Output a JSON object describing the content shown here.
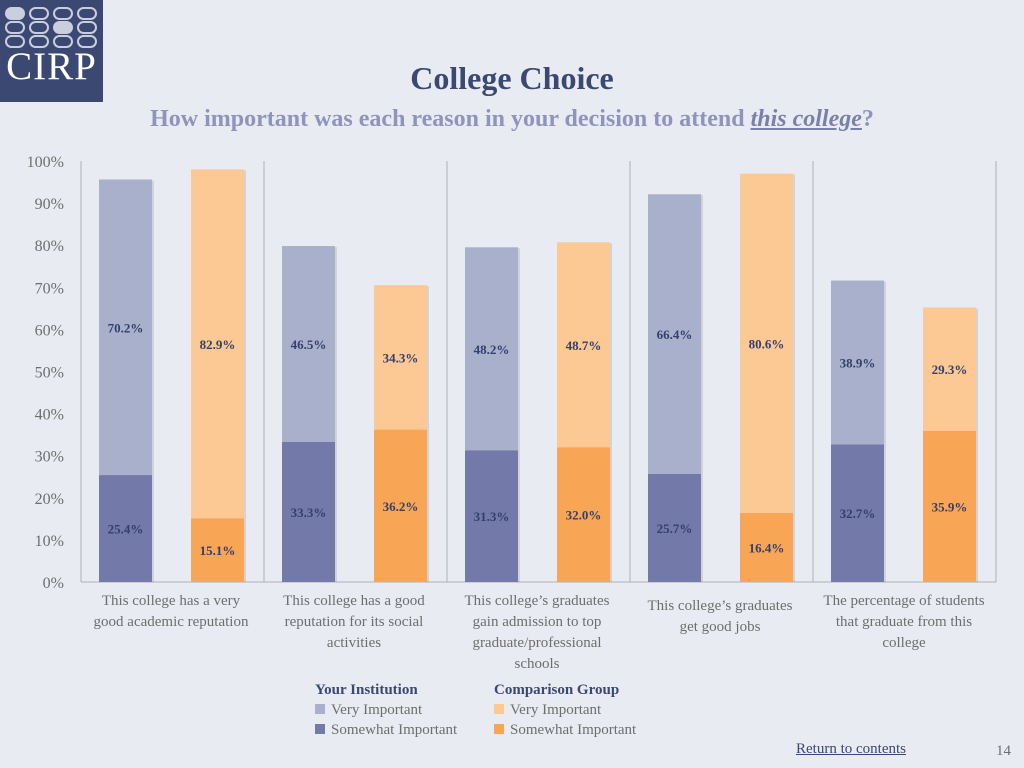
{
  "logo": {
    "text": "CIRP"
  },
  "header": {
    "title": "College Choice",
    "subtitle_prefix": "How important was each reason in your decision to attend ",
    "subtitle_emphasis": "this college",
    "subtitle_suffix": "?"
  },
  "colors": {
    "inst_very": "#a8b0cb",
    "inst_somewhat": "#7379a8",
    "comp_very": "#fcc894",
    "comp_somewhat": "#f8a555",
    "label": "#333f6e"
  },
  "chart_data": {
    "type": "bar",
    "stacked": true,
    "ylim": [
      0,
      100
    ],
    "yticks": [
      "0%",
      "10%",
      "20%",
      "30%",
      "40%",
      "50%",
      "60%",
      "70%",
      "80%",
      "90%",
      "100%"
    ],
    "categories": [
      "This college has a very good academic reputation",
      "This college has a good reputation for its social activities",
      "This college’s graduates gain admission to top graduate/professional schools",
      "This college’s graduates get good jobs",
      "The percentage of students that graduate from this college"
    ],
    "groups": [
      "Your Institution",
      "Comparison Group"
    ],
    "series": [
      {
        "name": "Your Institution — Somewhat Important",
        "group": "Your Institution",
        "level": "Somewhat Important",
        "values": [
          25.4,
          33.3,
          31.3,
          25.7,
          32.7
        ]
      },
      {
        "name": "Your Institution — Very Important",
        "group": "Your Institution",
        "level": "Very Important",
        "values": [
          70.2,
          46.5,
          48.2,
          66.4,
          38.9
        ]
      },
      {
        "name": "Comparison Group — Somewhat Important",
        "group": "Comparison Group",
        "level": "Somewhat Important",
        "values": [
          15.1,
          36.2,
          32.0,
          16.4,
          35.9
        ]
      },
      {
        "name": "Comparison Group — Very Important",
        "group": "Comparison Group",
        "level": "Very Important",
        "values": [
          82.9,
          34.3,
          48.7,
          80.6,
          29.3
        ]
      }
    ],
    "value_labels": {
      "Your Institution": {
        "Somewhat Important": [
          "25.4%",
          "33.3%",
          "31.3%",
          "25.7%",
          "32.7%"
        ],
        "Very Important": [
          "70.2%",
          "46.5%",
          "48.2%",
          "66.4%",
          "38.9%"
        ]
      },
      "Comparison Group": {
        "Somewhat Important": [
          "15.1%",
          "36.2%",
          "32.0%",
          "16.4%",
          "35.9%"
        ],
        "Very Important": [
          "82.9%",
          "34.3%",
          "48.7%",
          "80.6%",
          "29.3%"
        ]
      }
    },
    "legend": {
      "position": "bottom",
      "groups": [
        {
          "title": "Your Institution",
          "items": [
            {
              "label": "Very Important",
              "color": "#a8b0cb"
            },
            {
              "label": "Somewhat Important",
              "color": "#7379a8"
            }
          ]
        },
        {
          "title": "Comparison Group",
          "items": [
            {
              "label": "Very Important",
              "color": "#fcc894"
            },
            {
              "label": "Somewhat Important",
              "color": "#f8a555"
            }
          ]
        }
      ]
    },
    "grid": false
  },
  "footer": {
    "link": "Return to contents",
    "page": "14"
  }
}
